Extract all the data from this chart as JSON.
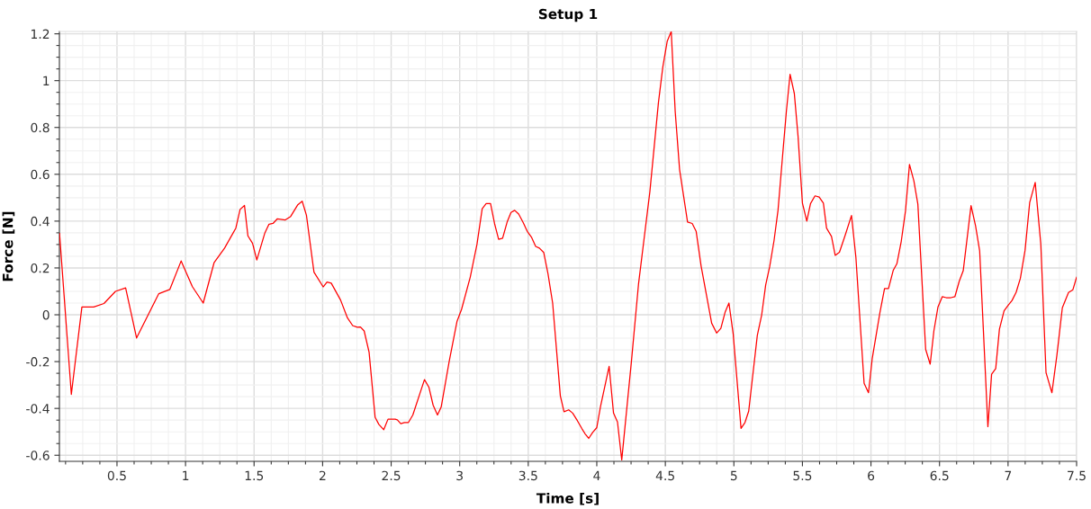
{
  "chart_data": {
    "type": "line",
    "title": "Setup 1",
    "xlabel": "Time [s]",
    "ylabel": "Force [N]",
    "xlim": [
      0.08,
      7.5
    ],
    "ylim": [
      -0.626,
      1.21
    ],
    "xticks": [
      0.5,
      1,
      1.5,
      2,
      2.5,
      3,
      3.5,
      4,
      4.5,
      5,
      5.5,
      6,
      6.5,
      7,
      7.5
    ],
    "yticks": [
      -0.6,
      -0.4,
      -0.2,
      0,
      0.2,
      0.4,
      0.6,
      0.8,
      1,
      1.2
    ],
    "grid": true,
    "marker": "none",
    "line_style": "solid",
    "series": [
      {
        "color": "#ff0000",
        "x": [
          0.081,
          0.167,
          0.244,
          0.33,
          0.405,
          0.489,
          0.563,
          0.643,
          0.805,
          0.885,
          0.968,
          1.05,
          1.129,
          1.208,
          1.285,
          1.367,
          1.398,
          1.43,
          1.455,
          1.489,
          1.52,
          1.579,
          1.609,
          1.638,
          1.67,
          1.728,
          1.767,
          1.819,
          1.851,
          1.882,
          1.937,
          2.004,
          2.032,
          2.063,
          2.131,
          2.181,
          2.219,
          2.253,
          2.276,
          2.303,
          2.339,
          2.383,
          2.41,
          2.446,
          2.477,
          2.529,
          2.545,
          2.57,
          2.597,
          2.626,
          2.658,
          2.743,
          2.775,
          2.806,
          2.838,
          2.865,
          2.923,
          2.98,
          3.014,
          3.077,
          3.126,
          3.164,
          3.193,
          3.225,
          3.254,
          3.284,
          3.313,
          3.347,
          3.374,
          3.401,
          3.43,
          3.464,
          3.493,
          3.523,
          3.554,
          3.581,
          3.613,
          3.644,
          3.678,
          3.734,
          3.761,
          3.795,
          3.824,
          3.858,
          3.892,
          3.914,
          3.941,
          3.971,
          4.0,
          4.027,
          4.09,
          4.122,
          4.151,
          4.182,
          4.252,
          4.304,
          4.387,
          4.45,
          4.482,
          4.514,
          4.543,
          4.572,
          4.604,
          4.662,
          4.696,
          4.725,
          4.761,
          4.838,
          4.874,
          4.905,
          4.937,
          4.964,
          4.995,
          5.052,
          5.081,
          5.108,
          5.171,
          5.203,
          5.232,
          5.261,
          5.293,
          5.322,
          5.356,
          5.383,
          5.41,
          5.441,
          5.468,
          5.5,
          5.532,
          5.559,
          5.592,
          5.622,
          5.653,
          5.676,
          5.712,
          5.739,
          5.77,
          5.811,
          5.858,
          5.89,
          5.95,
          5.982,
          6.009,
          6.065,
          6.099,
          6.128,
          6.162,
          6.189,
          6.221,
          6.252,
          6.281,
          6.313,
          6.342,
          6.399,
          6.432,
          6.459,
          6.489,
          6.52,
          6.549,
          6.583,
          6.612,
          6.644,
          6.673,
          6.73,
          6.763,
          6.793,
          6.853,
          6.88,
          6.91,
          6.937,
          6.971,
          7.0,
          7.029,
          7.059,
          7.09,
          7.124,
          7.158,
          7.198,
          7.239,
          7.277,
          7.32,
          7.356,
          7.396,
          7.441,
          7.473,
          7.5
        ],
        "values": [
          0.347,
          -0.34,
          0.033,
          0.033,
          0.048,
          0.1,
          0.115,
          -0.099,
          0.09,
          0.108,
          0.23,
          0.12,
          0.05,
          0.222,
          0.285,
          0.37,
          0.45,
          0.467,
          0.337,
          0.305,
          0.234,
          0.35,
          0.387,
          0.39,
          0.41,
          0.405,
          0.42,
          0.47,
          0.485,
          0.425,
          0.182,
          0.119,
          0.14,
          0.135,
          0.063,
          -0.013,
          -0.046,
          -0.053,
          -0.052,
          -0.069,
          -0.16,
          -0.438,
          -0.468,
          -0.491,
          -0.446,
          -0.446,
          -0.449,
          -0.465,
          -0.46,
          -0.46,
          -0.428,
          -0.277,
          -0.309,
          -0.386,
          -0.428,
          -0.394,
          -0.2,
          -0.029,
          0.024,
          0.161,
          0.301,
          0.453,
          0.475,
          0.475,
          0.39,
          0.322,
          0.327,
          0.398,
          0.437,
          0.446,
          0.43,
          0.393,
          0.356,
          0.332,
          0.292,
          0.285,
          0.266,
          0.175,
          0.05,
          -0.346,
          -0.414,
          -0.406,
          -0.42,
          -0.452,
          -0.487,
          -0.508,
          -0.528,
          -0.502,
          -0.482,
          -0.392,
          -0.22,
          -0.42,
          -0.458,
          -0.62,
          -0.203,
          0.129,
          0.525,
          0.908,
          1.06,
          1.169,
          1.21,
          0.868,
          0.62,
          0.396,
          0.39,
          0.356,
          0.208,
          -0.036,
          -0.078,
          -0.058,
          0.013,
          0.05,
          -0.082,
          -0.485,
          -0.46,
          -0.412,
          -0.088,
          0.0,
          0.127,
          0.205,
          0.317,
          0.446,
          0.684,
          0.869,
          1.027,
          0.945,
          0.763,
          0.477,
          0.4,
          0.475,
          0.508,
          0.503,
          0.477,
          0.37,
          0.335,
          0.254,
          0.267,
          0.338,
          0.424,
          0.246,
          -0.293,
          -0.333,
          -0.188,
          0.008,
          0.112,
          0.112,
          0.189,
          0.218,
          0.314,
          0.444,
          0.642,
          0.572,
          0.473,
          -0.148,
          -0.211,
          -0.069,
          0.034,
          0.077,
          0.073,
          0.073,
          0.077,
          0.143,
          0.188,
          0.466,
          0.38,
          0.272,
          -0.478,
          -0.254,
          -0.23,
          -0.062,
          0.017,
          0.04,
          0.061,
          0.096,
          0.156,
          0.275,
          0.48,
          0.565,
          0.301,
          -0.247,
          -0.333,
          -0.174,
          0.03,
          0.095,
          0.107,
          0.16
        ]
      }
    ]
  }
}
